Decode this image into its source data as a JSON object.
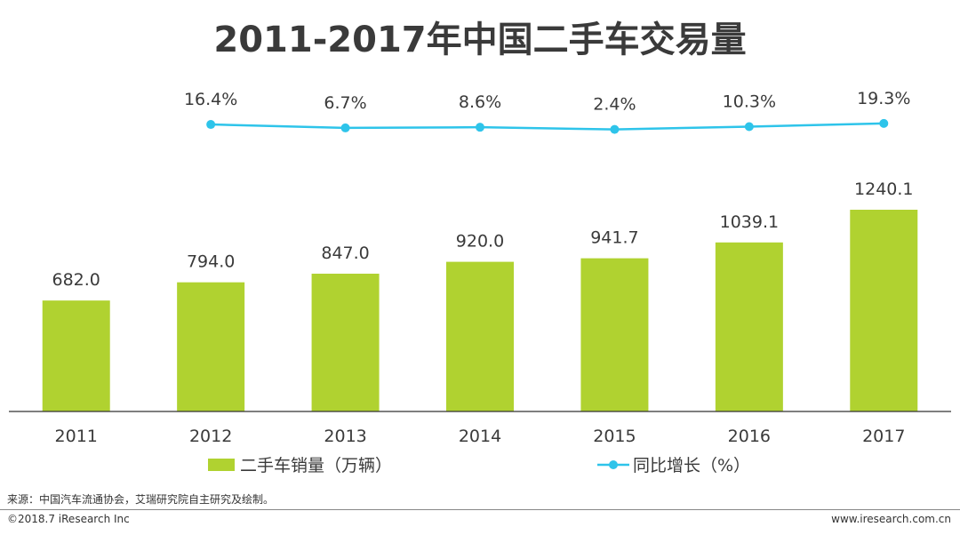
{
  "title": "2011-2017年中国二手车交易量",
  "colors": {
    "bar": "#b0d230",
    "line": "#2ec4ea",
    "axis": "#333333",
    "text": "#3a3a3a"
  },
  "chart_data": {
    "type": "bar",
    "categories": [
      "2011",
      "2012",
      "2013",
      "2014",
      "2015",
      "2016",
      "2017"
    ],
    "series": [
      {
        "name": "二手车销量（万辆）",
        "type": "bar",
        "values": [
          682.0,
          794.0,
          847.0,
          920.0,
          941.7,
          1039.1,
          1240.1
        ],
        "labels": [
          "682.0",
          "794.0",
          "847.0",
          "920.0",
          "941.7",
          "1039.1",
          "1240.1"
        ]
      },
      {
        "name": "同比增长（%）",
        "type": "line",
        "x": [
          "2012",
          "2013",
          "2014",
          "2015",
          "2016",
          "2017"
        ],
        "values": [
          16.4,
          6.7,
          8.6,
          2.4,
          10.3,
          19.3
        ],
        "labels": [
          "16.4%",
          "6.7%",
          "8.6%",
          "2.4%",
          "10.3%",
          "19.3%"
        ]
      }
    ],
    "legend": "bottom-center",
    "grid": false
  },
  "source": "来源：中国汽车流通协会，艾瑞研究院自主研究及绘制。",
  "copyright": "©2018.7 iResearch Inc",
  "website": "www.iresearch.com.cn"
}
